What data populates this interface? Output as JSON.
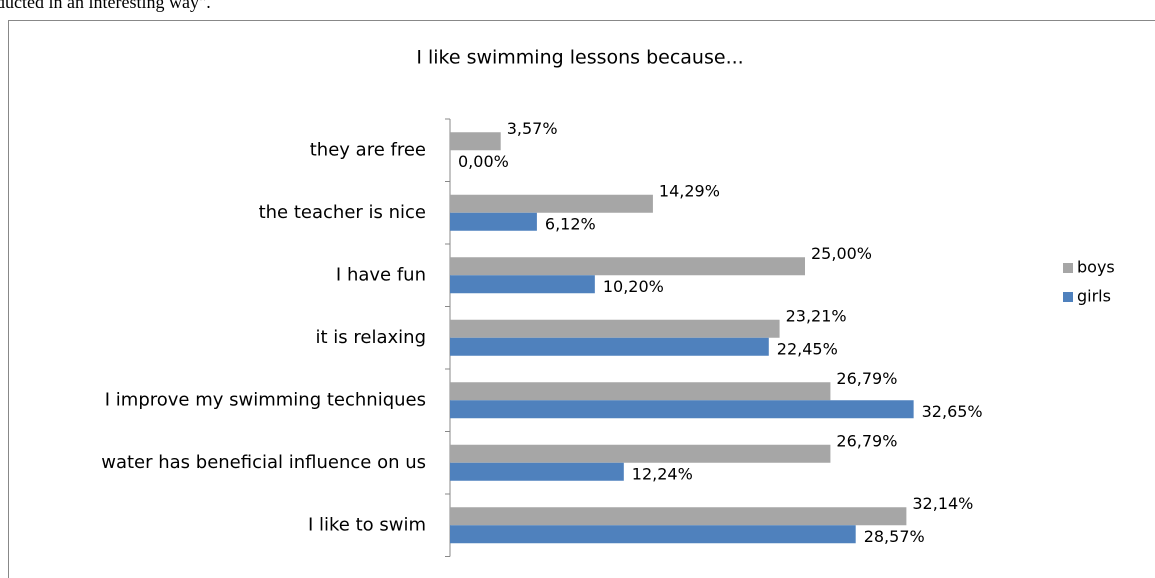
{
  "caption": "ducted in an interesting way\".",
  "chart_data": {
    "type": "bar",
    "orientation": "horizontal",
    "title": "I like swimming lessons because...",
    "categories": [
      "they are free",
      "the teacher is nice",
      "I have fun",
      "it is relaxing",
      "I improve my swimming techniques",
      "water has beneficial influence on us",
      "I like to swim"
    ],
    "series": [
      {
        "name": "boys",
        "color": "#a6a6a6",
        "values": [
          3.57,
          14.29,
          25.0,
          23.21,
          26.79,
          26.79,
          32.14
        ],
        "value_labels": [
          "3,57%",
          "14,29%",
          "25,00%",
          "23,21%",
          "26,79%",
          "26,79%",
          "32,14%"
        ]
      },
      {
        "name": "girls",
        "color": "#4f81bd",
        "values": [
          0.0,
          6.12,
          10.2,
          22.45,
          32.65,
          12.24,
          28.57
        ],
        "value_labels": [
          "0,00%",
          "6,12%",
          "10,20%",
          "22,45%",
          "32,65%",
          "12,24%",
          "28,57%"
        ]
      }
    ],
    "xlim": [
      0,
      40
    ],
    "legend": "right"
  }
}
